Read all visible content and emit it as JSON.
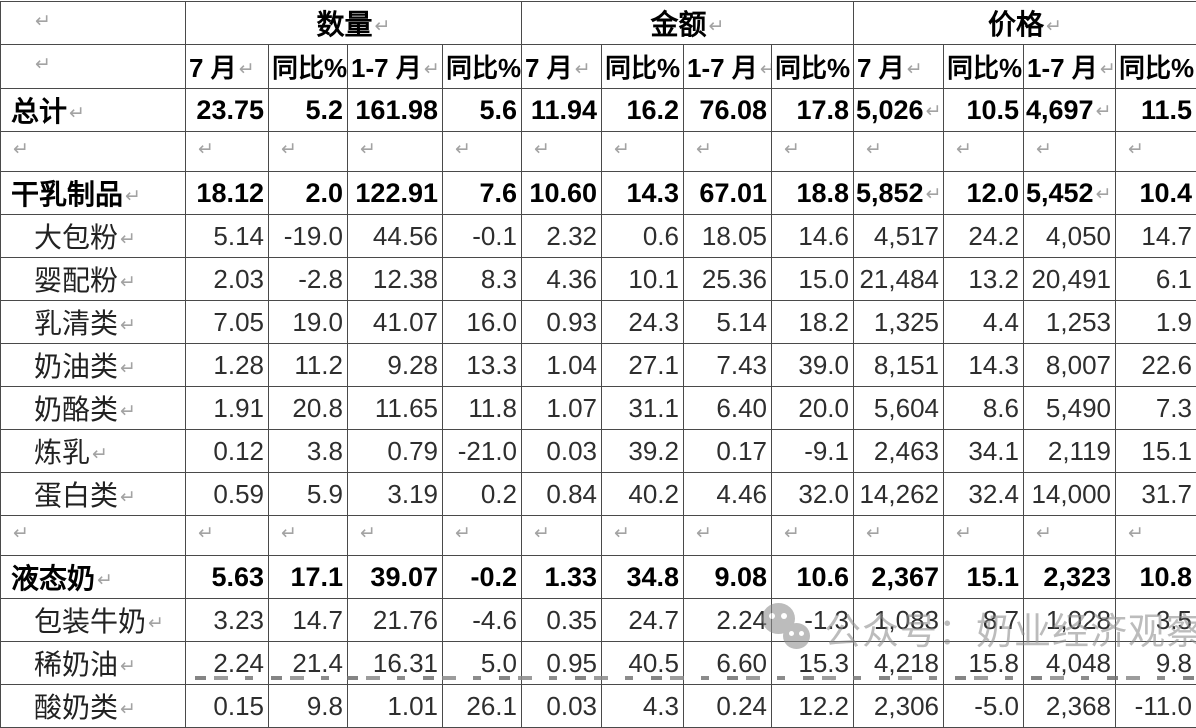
{
  "marks": {
    "pilcrow": "↵"
  },
  "watermark": {
    "icon": "wechat-icon",
    "text": "公众号：奶业经济观察"
  },
  "table": {
    "groups": [
      {
        "label": "数量"
      },
      {
        "label": "金额"
      },
      {
        "label": "价格"
      }
    ],
    "sub_headers": [
      "7 月",
      "同比%",
      "1-7 月",
      "同比%"
    ],
    "rows": [
      {
        "kind": "section",
        "label": "总计",
        "price_pilcrow": true,
        "values": [
          "23.75",
          "5.2",
          "161.98",
          "5.6",
          "11.94",
          "16.2",
          "76.08",
          "17.8",
          "5,026",
          "10.5",
          "4,697",
          "11.5"
        ]
      },
      {
        "kind": "empty"
      },
      {
        "kind": "section",
        "label": "干乳制品",
        "price_pilcrow": true,
        "values": [
          "18.12",
          "2.0",
          "122.91",
          "7.6",
          "10.60",
          "14.3",
          "67.01",
          "18.8",
          "5,852",
          "12.0",
          "5,452",
          "10.4"
        ]
      },
      {
        "kind": "sub",
        "label": "大包粉",
        "values": [
          "5.14",
          "-19.0",
          "44.56",
          "-0.1",
          "2.32",
          "0.6",
          "18.05",
          "14.6",
          "4,517",
          "24.2",
          "4,050",
          "14.7"
        ]
      },
      {
        "kind": "sub",
        "label": "婴配粉",
        "values": [
          "2.03",
          "-2.8",
          "12.38",
          "8.3",
          "4.36",
          "10.1",
          "25.36",
          "15.0",
          "21,484",
          "13.2",
          "20,491",
          "6.1"
        ]
      },
      {
        "kind": "sub",
        "label": "乳清类",
        "values": [
          "7.05",
          "19.0",
          "41.07",
          "16.0",
          "0.93",
          "24.3",
          "5.14",
          "18.2",
          "1,325",
          "4.4",
          "1,253",
          "1.9"
        ]
      },
      {
        "kind": "sub",
        "label": "奶油类",
        "values": [
          "1.28",
          "11.2",
          "9.28",
          "13.3",
          "1.04",
          "27.1",
          "7.43",
          "39.0",
          "8,151",
          "14.3",
          "8,007",
          "22.6"
        ]
      },
      {
        "kind": "sub",
        "label": "奶酪类",
        "values": [
          "1.91",
          "20.8",
          "11.65",
          "11.8",
          "1.07",
          "31.1",
          "6.40",
          "20.0",
          "5,604",
          "8.6",
          "5,490",
          "7.3"
        ]
      },
      {
        "kind": "sub",
        "label": "炼乳",
        "values": [
          "0.12",
          "3.8",
          "0.79",
          "-21.0",
          "0.03",
          "39.2",
          "0.17",
          "-9.1",
          "2,463",
          "34.1",
          "2,119",
          "15.1"
        ]
      },
      {
        "kind": "sub",
        "label": "蛋白类",
        "values": [
          "0.59",
          "5.9",
          "3.19",
          "0.2",
          "0.84",
          "40.2",
          "4.46",
          "32.0",
          "14,262",
          "32.4",
          "14,000",
          "31.7"
        ]
      },
      {
        "kind": "empty"
      },
      {
        "kind": "section",
        "label": "液态奶",
        "price_pilcrow": false,
        "values": [
          "5.63",
          "17.1",
          "39.07",
          "-0.2",
          "1.33",
          "34.8",
          "9.08",
          "10.6",
          "2,367",
          "15.1",
          "2,323",
          "10.8"
        ]
      },
      {
        "kind": "sub",
        "label": "包装牛奶",
        "values": [
          "3.23",
          "14.7",
          "21.76",
          "-4.6",
          "0.35",
          "24.7",
          "2.24",
          "-1.3",
          "1,083",
          "8.7",
          "1,028",
          "3.5"
        ]
      },
      {
        "kind": "sub",
        "label": "稀奶油",
        "values": [
          "2.24",
          "21.4",
          "16.31",
          "5.0",
          "0.95",
          "40.5",
          "6.60",
          "15.3",
          "4,218",
          "15.8",
          "4,048",
          "9.8"
        ]
      },
      {
        "kind": "sub",
        "label": "酸奶类",
        "values": [
          "0.15",
          "9.8",
          "1.01",
          "26.1",
          "0.03",
          "4.3",
          "0.24",
          "12.2",
          "2,306",
          "-5.0",
          "2,368",
          "-11.0"
        ]
      }
    ]
  },
  "colors": {
    "border": "#4a4a4a",
    "text": "#000000",
    "sub_text": "#2e2e2e",
    "pilcrow": "#a3a3a3",
    "watermark": "#8c8c8c"
  }
}
